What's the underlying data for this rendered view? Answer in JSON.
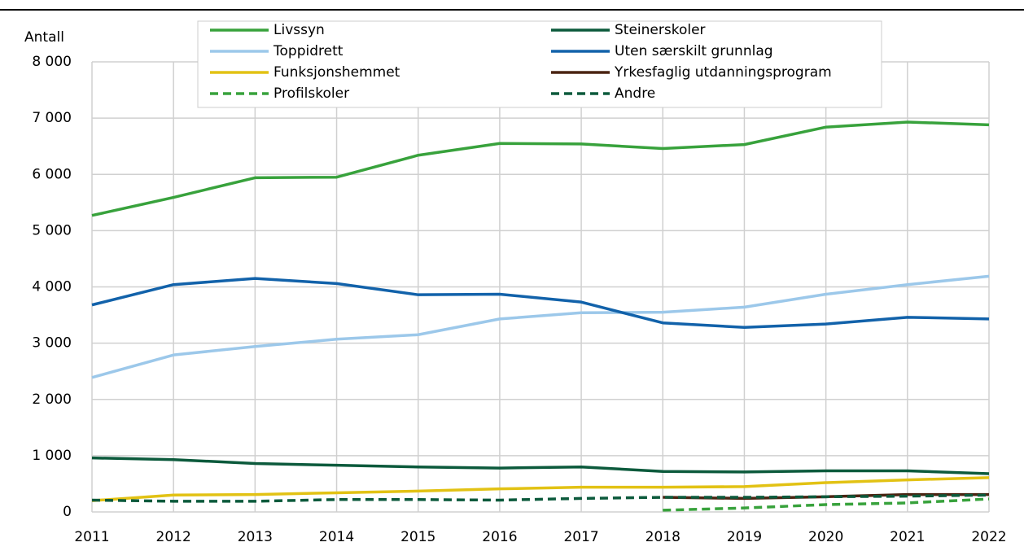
{
  "chart_data": {
    "type": "line",
    "y_label": "Antall",
    "x": [
      2011,
      2012,
      2013,
      2014,
      2015,
      2016,
      2017,
      2018,
      2019,
      2020,
      2021,
      2022
    ],
    "xlim": [
      2011,
      2022
    ],
    "xticks": [
      2011,
      2012,
      2013,
      2014,
      2015,
      2016,
      2017,
      2018,
      2019,
      2020,
      2021,
      2022
    ],
    "ylim": [
      0,
      8000
    ],
    "yticks": [
      0,
      {
        "value": 1000,
        "label": "1 000"
      },
      {
        "value": 2000,
        "label": "2 000"
      },
      {
        "value": 3000,
        "label": "3 000"
      },
      {
        "value": 4000,
        "label": "4 000"
      },
      {
        "value": 5000,
        "label": "5 000"
      },
      {
        "value": 6000,
        "label": "6 000"
      },
      {
        "value": 7000,
        "label": "7 000"
      },
      {
        "value": 8000,
        "label": "8 000"
      }
    ],
    "grid": true,
    "legend": "top",
    "series": [
      {
        "name": "Livssyn",
        "color": "#38a23c",
        "dashed": false,
        "values": [
          5270,
          5590,
          5940,
          5950,
          6340,
          6550,
          6540,
          6460,
          6530,
          6840,
          6930,
          6880
        ]
      },
      {
        "name": "Steinerskoler",
        "color": "#0c5a3c",
        "dashed": false,
        "values": [
          960,
          930,
          860,
          830,
          800,
          780,
          800,
          720,
          710,
          730,
          730,
          680
        ]
      },
      {
        "name": "Toppidrett",
        "color": "#9cc8ea",
        "dashed": false,
        "values": [
          2390,
          2790,
          2940,
          3070,
          3150,
          3430,
          3540,
          3550,
          3640,
          3870,
          4040,
          4190
        ]
      },
      {
        "name": "Uten særskilt grunnlag",
        "color": "#1262aa",
        "dashed": false,
        "values": [
          3680,
          4040,
          4150,
          4060,
          3860,
          3870,
          3730,
          3360,
          3280,
          3340,
          3460,
          3430
        ]
      },
      {
        "name": "Funksjonshemmet",
        "color": "#e2c214",
        "dashed": false,
        "values": [
          200,
          300,
          310,
          340,
          370,
          410,
          440,
          440,
          450,
          520,
          570,
          610
        ]
      },
      {
        "name": "Yrkesfaglig utdanningsprogram",
        "color": "#4a2412",
        "dashed": false,
        "values": [
          null,
          null,
          null,
          null,
          null,
          null,
          null,
          260,
          240,
          270,
          310,
          310
        ]
      },
      {
        "name": "Profilskoler",
        "color": "#38a23c",
        "dashed": true,
        "values": [
          null,
          null,
          null,
          null,
          null,
          null,
          null,
          30,
          70,
          130,
          160,
          230
        ]
      },
      {
        "name": "Andre",
        "color": "#0c5a3c",
        "dashed": true,
        "values": [
          210,
          190,
          190,
          220,
          220,
          210,
          240,
          260,
          260,
          270,
          280,
          300
        ]
      }
    ]
  }
}
